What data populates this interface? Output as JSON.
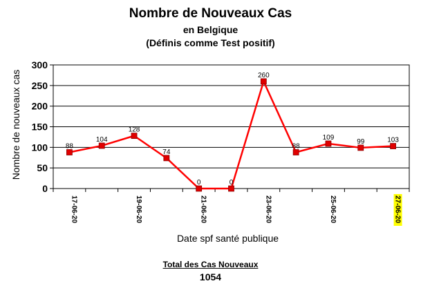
{
  "chart_data": {
    "type": "line",
    "title": "Nombre de Nouveaux Cas",
    "subtitle": "en Belgique",
    "subtitle2": "(Définis comme Test positif)",
    "xlabel": "Date spf santé publique",
    "ylabel": "Nombre de nouveaux cas",
    "ylim": [
      0,
      300
    ],
    "yticks": [
      "0",
      "50",
      "100",
      "150",
      "200",
      "250",
      "300"
    ],
    "grid": true,
    "legend": "none",
    "x_tick_labels": [
      "17-06-20",
      "19-06-20",
      "21-06-20",
      "23-06-20",
      "25-06-20",
      "27-06-20"
    ],
    "highlighted_tick": "27-06-20",
    "series": [
      {
        "values": [
          88,
          104,
          128,
          74,
          0,
          0,
          260,
          88,
          109,
          99,
          103
        ],
        "color": "#ff0000",
        "marker_color": "#e00000"
      }
    ],
    "data_labels": [
      "88",
      "104",
      "128",
      "74",
      "0",
      "0",
      "260",
      "88",
      "109",
      "99",
      "103"
    ]
  },
  "footer": {
    "total_label": "Total des Cas Nouveaux",
    "total_value": "1054"
  },
  "colors": {
    "line": "#ff0000",
    "highlight": "#ffff00",
    "grid": "#000000"
  }
}
